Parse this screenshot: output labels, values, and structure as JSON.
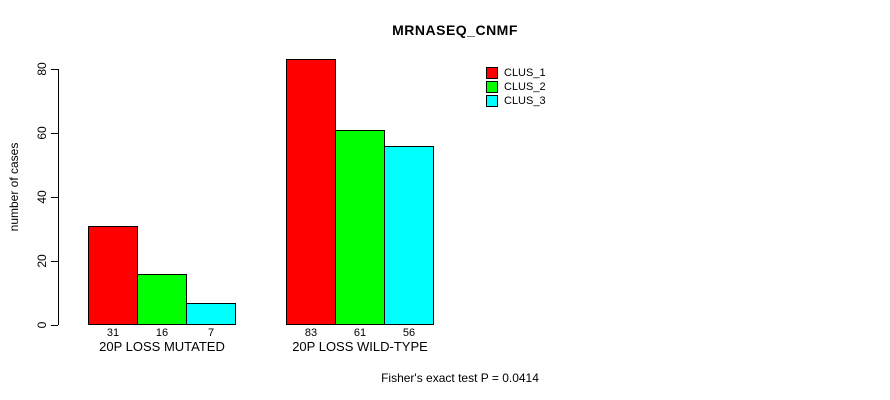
{
  "chart_data": {
    "type": "bar",
    "title": "MRNASEQ_CNMF",
    "ylabel": "number of cases",
    "xlabel": "",
    "categories": [
      "20P LOSS MUTATED",
      "20P LOSS WILD-TYPE"
    ],
    "series": [
      {
        "name": "CLUS_1",
        "color": "#ff0000",
        "values": [
          31,
          83
        ]
      },
      {
        "name": "CLUS_2",
        "color": "#00ff00",
        "values": [
          16,
          61
        ]
      },
      {
        "name": "CLUS_3",
        "color": "#00ffff",
        "values": [
          7,
          56
        ]
      }
    ],
    "ylim": [
      0,
      80
    ],
    "yticks": [
      0,
      20,
      40,
      60,
      80
    ],
    "grid": false,
    "bar_value_labels_shown": true,
    "legend_position": "top-right",
    "annotation": "Fisher's exact test P = 0.0414"
  },
  "colors": {
    "background": "#ffffff",
    "axis": "#000000",
    "bar_border": "#000000",
    "text": "#000000"
  }
}
